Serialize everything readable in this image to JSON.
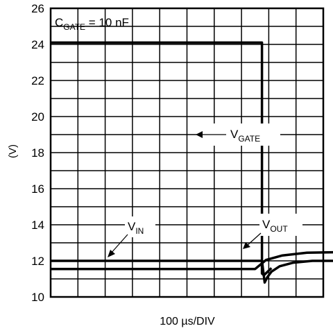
{
  "chart_data": {
    "type": "line",
    "title": "",
    "xlabel": "100 µs/DIV",
    "ylabel": "(V)",
    "ylim": [
      10,
      26
    ],
    "y_ticks": [
      10,
      12,
      14,
      16,
      18,
      20,
      22,
      24,
      26
    ],
    "x_divisions": 10,
    "grid": true,
    "legend": "none",
    "annotation": {
      "main": "C",
      "sub": "GATE",
      "rest": " = 10 nF"
    },
    "series": [
      {
        "key": "gate",
        "label_main": "V",
        "label_sub": "GATE",
        "points": [
          [
            0,
            24.1
          ],
          [
            7.75,
            24.1
          ],
          [
            7.75,
            11.3
          ],
          [
            7.82,
            11.2
          ],
          [
            8.1,
            11.6
          ]
        ]
      },
      {
        "key": "in",
        "label_main": "V",
        "label_sub": "IN",
        "points": [
          [
            0,
            12.0
          ],
          [
            7.75,
            12.0
          ],
          [
            7.85,
            10.8
          ],
          [
            7.95,
            11.1
          ],
          [
            8.1,
            11.4
          ],
          [
            8.4,
            11.7
          ],
          [
            8.9,
            11.9
          ],
          [
            9.6,
            12.0
          ],
          [
            11.4,
            12.0
          ]
        ]
      },
      {
        "key": "out",
        "label_main": "V",
        "label_sub": "OUT",
        "points": [
          [
            0,
            11.55
          ],
          [
            7.5,
            11.55
          ],
          [
            7.9,
            12.05
          ],
          [
            8.5,
            12.3
          ],
          [
            9.4,
            12.45
          ],
          [
            11.4,
            12.5
          ]
        ]
      }
    ]
  }
}
